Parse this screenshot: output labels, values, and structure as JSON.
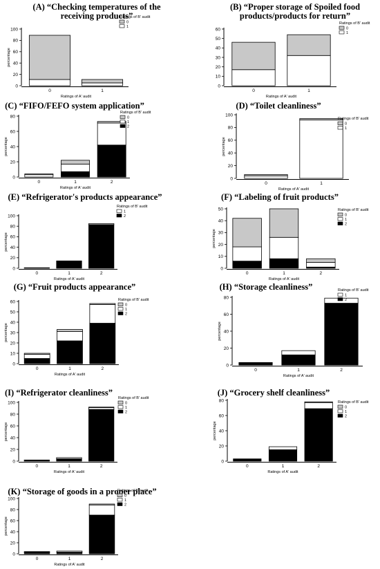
{
  "colors": {
    "rating0": "#c8c8c8",
    "rating1": "#ffffff",
    "rating2": "#000000",
    "axis": "#000000"
  },
  "legend_title": "Ratings of B' audit",
  "xlabel": "Ratings of A' audit",
  "chart_data": [
    {
      "id": "A",
      "type": "bar",
      "stacked": true,
      "title_lines": [
        "(A) “Checking temperatures of the",
        "receiving products”"
      ],
      "categories": [
        "0",
        "1"
      ],
      "ylabel": "percentage",
      "ylim": [
        0,
        100
      ],
      "yticks": [
        0,
        20,
        40,
        60,
        80,
        100
      ],
      "legend_labels": [
        "0",
        "1"
      ],
      "series": [
        {
          "name": "1",
          "values": [
            11,
            5
          ]
        },
        {
          "name": "0",
          "values": [
            78,
            6
          ]
        }
      ]
    },
    {
      "id": "B",
      "type": "bar",
      "stacked": true,
      "title_lines": [
        "(B) “Proper storage of Spoiled food",
        "products/products for return”"
      ],
      "categories": [
        "0",
        "1"
      ],
      "ylabel": "",
      "ylim": [
        0,
        60
      ],
      "yticks": [
        0,
        10,
        20,
        30,
        40,
        50,
        60
      ],
      "legend_labels": [
        "0",
        "1"
      ],
      "series": [
        {
          "name": "1",
          "values": [
            17,
            32
          ]
        },
        {
          "name": "0",
          "values": [
            29,
            22
          ]
        }
      ]
    },
    {
      "id": "C",
      "type": "bar",
      "stacked": true,
      "title_lines": [
        "(C) “FIFO/FEFO system application”"
      ],
      "categories": [
        "0",
        "1",
        "2"
      ],
      "ylabel": "percentage",
      "ylim": [
        0,
        80
      ],
      "yticks": [
        0,
        20,
        40,
        60,
        80
      ],
      "legend_labels": [
        "0",
        "1",
        "2"
      ],
      "series": [
        {
          "name": "2",
          "values": [
            0,
            7,
            42
          ]
        },
        {
          "name": "1",
          "values": [
            3,
            10,
            29
          ]
        },
        {
          "name": "0",
          "values": [
            1,
            5,
            2
          ]
        }
      ]
    },
    {
      "id": "D",
      "type": "bar",
      "stacked": true,
      "title_lines": [
        "(D) “Toilet cleanliness”"
      ],
      "categories": [
        "0",
        "1"
      ],
      "ylabel": "percentage",
      "ylim": [
        0,
        100
      ],
      "yticks": [
        0,
        20,
        40,
        60,
        80,
        100
      ],
      "legend_labels": [
        "0",
        "1"
      ],
      "series": [
        {
          "name": "1",
          "values": [
            4,
            92
          ]
        },
        {
          "name": "0",
          "values": [
            2,
            2
          ]
        }
      ]
    },
    {
      "id": "E",
      "type": "bar",
      "stacked": true,
      "title_lines": [
        "(E) “Refrigerator's products appearance”"
      ],
      "categories": [
        "0",
        "1",
        "2"
      ],
      "ylabel": "percentage",
      "ylim": [
        0,
        100
      ],
      "yticks": [
        0,
        20,
        40,
        60,
        80,
        100
      ],
      "legend_labels": [
        "1",
        "2"
      ],
      "series": [
        {
          "name": "2",
          "values": [
            0,
            14,
            83
          ]
        },
        {
          "name": "1",
          "values": [
            1,
            0,
            2
          ]
        }
      ]
    },
    {
      "id": "F",
      "type": "bar",
      "stacked": true,
      "title_lines": [
        "(F) “Labeling of fruit products”"
      ],
      "categories": [
        "0",
        "1",
        "2"
      ],
      "ylabel": "percentage",
      "ylim": [
        0,
        50
      ],
      "yticks": [
        0,
        10,
        20,
        30,
        40,
        50
      ],
      "legend_labels": [
        "0",
        "1",
        "2"
      ],
      "series": [
        {
          "name": "2",
          "values": [
            6,
            8,
            1
          ]
        },
        {
          "name": "1",
          "values": [
            12,
            18,
            4
          ]
        },
        {
          "name": "0",
          "values": [
            24,
            24,
            3
          ]
        }
      ]
    },
    {
      "id": "G",
      "type": "bar",
      "stacked": true,
      "title_lines": [
        "(G) “Fruit products appearance”"
      ],
      "categories": [
        "0",
        "1",
        "2"
      ],
      "ylabel": "percentage",
      "ylim": [
        0,
        60
      ],
      "yticks": [
        0,
        10,
        20,
        30,
        40,
        50,
        60
      ],
      "legend_labels": [
        "0",
        "1",
        "2"
      ],
      "series": [
        {
          "name": "2",
          "values": [
            5,
            22,
            39
          ]
        },
        {
          "name": "1",
          "values": [
            4,
            9,
            18
          ]
        },
        {
          "name": "0",
          "values": [
            1,
            2,
            1
          ]
        }
      ]
    },
    {
      "id": "H",
      "type": "bar",
      "stacked": true,
      "title_lines": [
        "(H) “Storage cleanliness”"
      ],
      "categories": [
        "0",
        "1",
        "2"
      ],
      "ylabel": "percentage",
      "ylim": [
        0,
        80
      ],
      "yticks": [
        0,
        20,
        40,
        60,
        80
      ],
      "legend_labels": [
        "1",
        "2"
      ],
      "series": [
        {
          "name": "2",
          "values": [
            3,
            12,
            73
          ]
        },
        {
          "name": "1",
          "values": [
            0,
            5,
            6
          ]
        }
      ]
    },
    {
      "id": "I",
      "type": "bar",
      "stacked": true,
      "title_lines": [
        "(I) “Refrigerator cleanliness”"
      ],
      "categories": [
        "0",
        "1",
        "2"
      ],
      "ylabel": "percentage",
      "ylim": [
        0,
        100
      ],
      "yticks": [
        0,
        20,
        40,
        60,
        80,
        100
      ],
      "legend_labels": [
        "0",
        "1",
        "2"
      ],
      "series": [
        {
          "name": "2",
          "values": [
            1,
            4,
            88
          ]
        },
        {
          "name": "1",
          "values": [
            1,
            2,
            3
          ]
        },
        {
          "name": "0",
          "values": [
            0,
            0,
            1
          ]
        }
      ]
    },
    {
      "id": "J",
      "type": "bar",
      "stacked": true,
      "title_lines": [
        "(J) “Grocery shelf cleanliness”"
      ],
      "categories": [
        "0",
        "1",
        "2"
      ],
      "ylabel": "percentage",
      "ylim": [
        0,
        80
      ],
      "yticks": [
        0,
        20,
        40,
        60,
        80
      ],
      "legend_labels": [
        "0",
        "1",
        "2"
      ],
      "series": [
        {
          "name": "2",
          "values": [
            3,
            15,
            69
          ]
        },
        {
          "name": "1",
          "values": [
            0,
            4,
            8
          ]
        },
        {
          "name": "0",
          "values": [
            0,
            0,
            1
          ]
        }
      ]
    },
    {
      "id": "K",
      "type": "bar",
      "stacked": true,
      "title_lines": [
        "(K) “Storage of goods in a proper place”"
      ],
      "categories": [
        "0",
        "1",
        "2"
      ],
      "ylabel": "percentage",
      "ylim": [
        0,
        100
      ],
      "yticks": [
        0,
        20,
        40,
        60,
        80,
        100
      ],
      "legend_labels": [
        "0",
        "1",
        "2"
      ],
      "series": [
        {
          "name": "2",
          "values": [
            3,
            3,
            70
          ]
        },
        {
          "name": "1",
          "values": [
            1,
            2,
            18
          ]
        },
        {
          "name": "0",
          "values": [
            0,
            0,
            2
          ]
        }
      ]
    }
  ]
}
